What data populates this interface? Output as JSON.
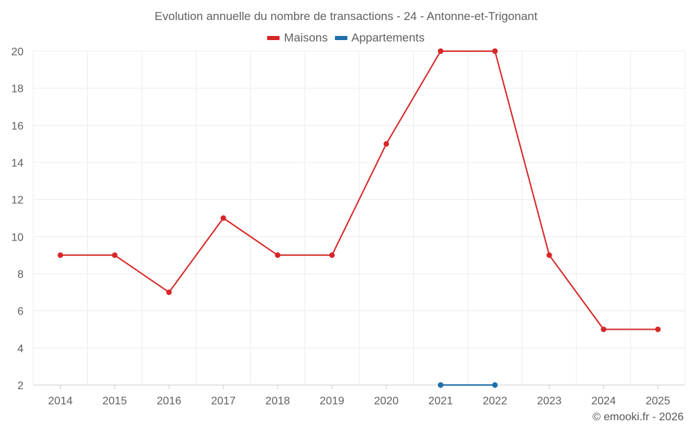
{
  "chart_data": {
    "type": "line",
    "title": "Evolution annuelle du nombre de transactions - 24 - Antonne-et-Trigonant",
    "x": [
      "2014",
      "2015",
      "2016",
      "2017",
      "2018",
      "2019",
      "2020",
      "2021",
      "2022",
      "2023",
      "2024",
      "2025"
    ],
    "series": [
      {
        "name": "Maisons",
        "color": "#d62728",
        "values": [
          9,
          9,
          7,
          11,
          9,
          9,
          15,
          20,
          20,
          9,
          5,
          5
        ]
      },
      {
        "name": "Appartements",
        "color": "#1f6fa8",
        "values": [
          null,
          null,
          null,
          null,
          null,
          null,
          null,
          2,
          2,
          null,
          null,
          null
        ]
      }
    ],
    "ylim": [
      2,
      20
    ],
    "yticks": [
      2,
      4,
      6,
      8,
      10,
      12,
      14,
      16,
      18,
      20
    ],
    "grid": true,
    "legend": "top-center"
  },
  "footer": {
    "credit": "© emooki.fr - 2026"
  }
}
